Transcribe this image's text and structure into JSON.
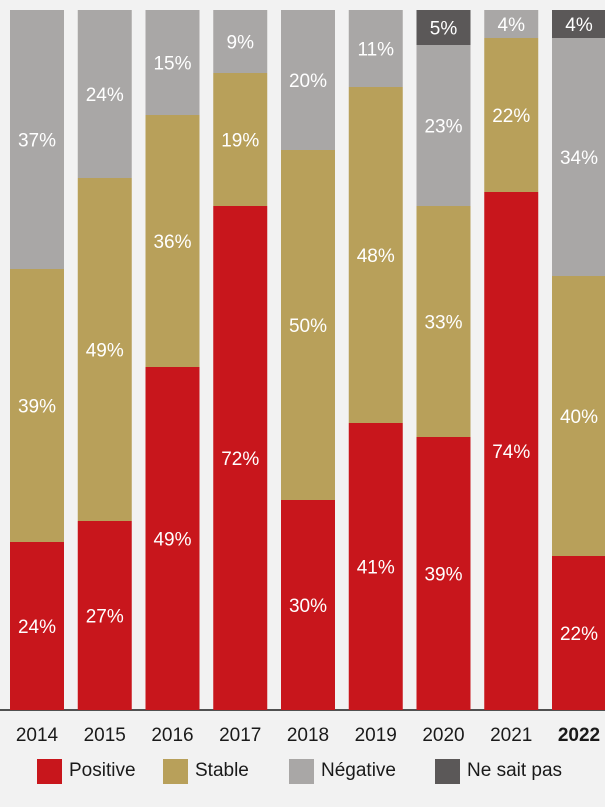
{
  "chart_data": {
    "type": "bar",
    "stacked": true,
    "normalized_percent": true,
    "categories": [
      "2014",
      "2015",
      "2016",
      "2017",
      "2018",
      "2019",
      "2020",
      "2021",
      "2022"
    ],
    "bold_category": "2022",
    "series": [
      {
        "name": "Positive",
        "color": "#c8161c",
        "values": [
          24,
          27,
          49,
          72,
          30,
          41,
          39,
          74,
          22
        ]
      },
      {
        "name": "Stable",
        "color": "#b8a05a",
        "values": [
          39,
          49,
          36,
          19,
          50,
          48,
          33,
          22,
          40
        ]
      },
      {
        "name": "Négative",
        "color": "#a9a7a6",
        "values": [
          37,
          24,
          15,
          9,
          20,
          11,
          23,
          4,
          34
        ]
      },
      {
        "name": "Ne sait pas",
        "color": "#5b5858",
        "values": [
          0,
          0,
          0,
          0,
          0,
          0,
          5,
          0,
          4
        ]
      }
    ],
    "legend_position": "bottom",
    "grid": false
  },
  "legend": {
    "items": [
      {
        "label": "Positive",
        "color": "#c8161c"
      },
      {
        "label": "Stable",
        "color": "#b8a05a"
      },
      {
        "label": "Négative",
        "color": "#a9a7a6"
      },
      {
        "label": "Ne sait pas",
        "color": "#5b5858"
      }
    ]
  }
}
